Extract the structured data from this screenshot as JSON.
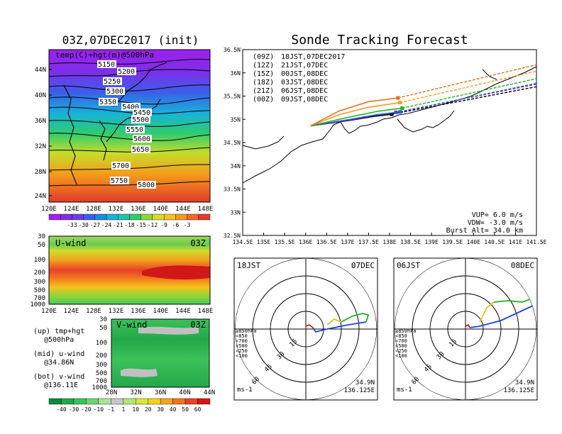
{
  "left_title": "03Z,07DEC2017 (init)",
  "right_title": "Sonde Tracking Forecast",
  "map500": {
    "label": "temp(C)+hgt(m)@500hPa",
    "lat_ticks": [
      "44N",
      "40N",
      "36N",
      "32N",
      "28N",
      "24N"
    ],
    "lon_ticks": [
      "120E",
      "124E",
      "128E",
      "132E",
      "136E",
      "140E",
      "144E",
      "148E"
    ],
    "contour_labels": [
      "5150",
      "5200",
      "5250",
      "5300",
      "5350",
      "5400",
      "5450",
      "5500",
      "5550",
      "5600",
      "5650",
      "5700",
      "5750",
      "5800"
    ]
  },
  "temp_colorbar": {
    "labels": [
      "-33",
      "-30",
      "-27",
      "-24",
      "-21",
      "-18",
      "-15",
      "-12",
      "-9",
      "-6",
      "-3"
    ],
    "colors": [
      "#a020f0",
      "#8a2be2",
      "#6a3fe0",
      "#3b5fe8",
      "#1f8ae6",
      "#17b3d9",
      "#1fc4a8",
      "#2fcc6c",
      "#8fd63a",
      "#d9dc2a",
      "#f5c21d",
      "#f59a1c",
      "#f26a1d",
      "#e23b2a"
    ]
  },
  "uwind": {
    "label": "U-wind",
    "time": "03Z",
    "p_ticks": [
      "30",
      "50",
      "100",
      "200",
      "300",
      "500",
      "700",
      "1000"
    ],
    "lon_ticks": [
      "120E",
      "124E",
      "128E",
      "132E",
      "136E",
      "140E",
      "144E",
      "148E"
    ]
  },
  "vwind": {
    "label": "V-wind",
    "time": "03Z",
    "p_ticks": [
      "30",
      "50",
      "100",
      "200",
      "300",
      "500",
      "700",
      "1000"
    ],
    "lat_ticks": [
      "28N",
      "32N",
      "36N",
      "40N",
      "44N"
    ]
  },
  "wind_colorbar": {
    "labels": [
      "-40",
      "-30",
      "-20",
      "-10",
      "-1",
      "1",
      "10",
      "20",
      "30",
      "40",
      "50",
      "60"
    ],
    "colors": [
      "#0a8a3c",
      "#22a84a",
      "#3bc25a",
      "#6fd46f",
      "#a9e39a",
      "#c8c8c8",
      "#b6e37a",
      "#d9e83a",
      "#f5d21d",
      "#f5a51c",
      "#f2731d",
      "#e8412a",
      "#d01818"
    ]
  },
  "legend_lines": [
    {
      "text": "(up) tmp+hgt"
    },
    {
      "text": "@500hPa"
    },
    {
      "text": "(mid) u-wind"
    },
    {
      "text": "@34.86N"
    },
    {
      "text": "(bot) v-wind"
    },
    {
      "text": "@136.11E"
    }
  ],
  "track_map": {
    "lat_ticks": [
      "36.5N",
      "36N",
      "35.5N",
      "35N",
      "34.5N",
      "34N",
      "33.5N",
      "33N",
      "32.5N"
    ],
    "lon_ticks": [
      "134.5E",
      "135E",
      "135.5E",
      "136E",
      "136.5E",
      "137E",
      "137.5E",
      "138E",
      "138.5E",
      "139E",
      "139.5E",
      "140E",
      "140.5E",
      "141E",
      "141.5E"
    ],
    "legend": [
      {
        "code": "(09Z)",
        "label": "18JST,07DEC2017",
        "color": "#000000"
      },
      {
        "code": "(12Z)",
        "label": "21JST,07DEC",
        "color": "#a020c0"
      },
      {
        "code": "(15Z)",
        "label": "00JST,08DEC",
        "color": "#2060e0"
      },
      {
        "code": "(18Z)",
        "label": "03JST,08DEC",
        "color": "#20b020"
      },
      {
        "code": "(21Z)",
        "label": "06JST,08DEC",
        "color": "#f0a020"
      },
      {
        "code": "(00Z)",
        "label": "09JST,08DEC",
        "color": "#e07020"
      }
    ],
    "params": [
      "VUP= 6.0 m/s",
      "VDW= -3.0 m/s",
      "Burst Alt= 34.0 km"
    ]
  },
  "hodo_left": {
    "time_label": "18JST",
    "date_label": "07DEC",
    "ring_labels": [
      "15",
      "30",
      "45",
      "60"
    ],
    "level_legend": [
      {
        "text": "≥850hPa",
        "color": "#e02020"
      },
      {
        "text": "<850",
        "color": "#f08020"
      },
      {
        "text": "<700",
        "color": "#e0c020"
      },
      {
        "text": "<500",
        "color": "#20b020"
      },
      {
        "text": "<250",
        "color": "#20a0e0"
      },
      {
        "text": "<100",
        "color": "#2040e0"
      }
    ],
    "units": "ms-1",
    "lat": "34.9N",
    "lon": "136.125E"
  },
  "hodo_right": {
    "time_label": "06JST",
    "date_label": "08DEC",
    "ring_labels": [
      "15",
      "30",
      "45",
      "60"
    ],
    "level_legend": [
      {
        "text": "≥850hPa",
        "color": "#e02020"
      },
      {
        "text": "<850",
        "color": "#f08020"
      },
      {
        "text": "<700",
        "color": "#e0c020"
      },
      {
        "text": "<500",
        "color": "#20b020"
      },
      {
        "text": "<250",
        "color": "#20a0e0"
      },
      {
        "text": "<100",
        "color": "#2040e0"
      }
    ],
    "units": "ms-1",
    "lat": "34.9N",
    "lon": "136.125E"
  },
  "chart_data": [
    {
      "type": "heatmap",
      "title": "temp(C)+hgt(m)@500hPa",
      "xlabel": "",
      "ylabel": "",
      "x_range": [
        "120E",
        "148E"
      ],
      "y_range": [
        "22N",
        "47N"
      ],
      "contour_values": [
        5150,
        5200,
        5250,
        5300,
        5350,
        5400,
        5450,
        5500,
        5550,
        5600,
        5650,
        5700,
        5750,
        5800
      ],
      "colorbar": [
        -33,
        -30,
        -27,
        -24,
        -21,
        -18,
        -15,
        -12,
        -9,
        -6,
        -3
      ]
    },
    {
      "type": "heatmap",
      "title": "U-wind",
      "x_range": [
        "120E",
        "148E"
      ],
      "y_ticks_hPa": [
        30,
        50,
        100,
        200,
        300,
        500,
        700,
        1000
      ],
      "y_scale": "log"
    },
    {
      "type": "heatmap",
      "title": "V-wind",
      "x_range": [
        "28N",
        "44N"
      ],
      "y_ticks_hPa": [
        30,
        50,
        100,
        200,
        300,
        500,
        700,
        1000
      ],
      "y_scale": "log",
      "colorbar": [
        -40,
        -30,
        -20,
        -10,
        -1,
        1,
        10,
        20,
        30,
        40,
        50,
        60
      ]
    },
    {
      "type": "line",
      "title": "Sonde Tracking Forecast",
      "x_range": [
        134.5,
        141.5
      ],
      "y_range": [
        32.5,
        36.5
      ],
      "series": [
        {
          "name": "(09Z) 18JST,07DEC2017",
          "x": [
            136.12,
            137.0,
            137.6,
            138.05
          ],
          "y": [
            34.86,
            34.97,
            35.06,
            35.11
          ]
        },
        {
          "name": "(12Z) 21JST,07DEC",
          "x": [
            136.12,
            137.0,
            137.6,
            138.15
          ],
          "y": [
            34.86,
            34.98,
            35.08,
            35.15
          ]
        },
        {
          "name": "(15Z) 00JST,08DEC",
          "x": [
            136.12,
            137.0,
            137.7,
            138.25
          ],
          "y": [
            34.86,
            34.99,
            35.1,
            35.16
          ]
        },
        {
          "name": "(18Z) 03JST,08DEC",
          "x": [
            136.12,
            137.0,
            137.7,
            138.3
          ],
          "y": [
            34.86,
            35.04,
            35.17,
            35.24
          ]
        },
        {
          "name": "(21Z) 06JST,08DEC",
          "x": [
            136.12,
            136.8,
            137.5,
            138.25
          ],
          "y": [
            34.86,
            35.1,
            35.26,
            35.36
          ]
        },
        {
          "name": "(00Z) 09JST,08DEC",
          "x": [
            136.12,
            136.8,
            137.5,
            138.2
          ],
          "y": [
            34.86,
            35.18,
            35.38,
            35.46
          ]
        }
      ]
    }
  ]
}
